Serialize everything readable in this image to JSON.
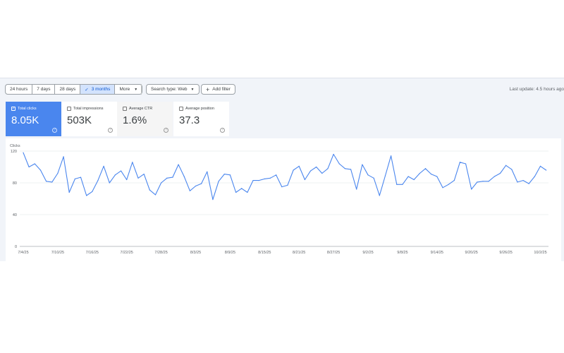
{
  "toolbar": {
    "date_ranges": [
      "24 hours",
      "7 days",
      "28 days",
      "3 months",
      "More"
    ],
    "selected_range": "3 months",
    "search_type": "Search type: Web",
    "add_filter": "Add filter",
    "last_update": "Last update: 4.5 hours ago"
  },
  "metrics": [
    {
      "label": "Total clicks",
      "value": "8.05K",
      "checked": true,
      "color": "#4a86ee"
    },
    {
      "label": "Total impressions",
      "value": "503K",
      "checked": false
    },
    {
      "label": "Average CTR",
      "value": "1.6%",
      "checked": false
    },
    {
      "label": "Average position",
      "value": "37.3",
      "checked": false
    }
  ],
  "chart_data": {
    "type": "line",
    "ylabel": "Clicks",
    "ylim": [
      0,
      120
    ],
    "yticks": [
      0,
      40,
      80,
      120
    ],
    "grid": true,
    "line_color": "#4a86ee",
    "xticks": [
      "7/4/25",
      "7/10/25",
      "7/16/25",
      "7/22/25",
      "7/28/25",
      "8/3/25",
      "8/9/25",
      "8/15/25",
      "8/21/25",
      "8/27/25",
      "9/2/25",
      "9/8/25",
      "9/14/25",
      "9/20/25",
      "9/26/25",
      "10/2/25"
    ],
    "x_start": "7/4/25",
    "x_end": "10/3/25",
    "series": [
      {
        "values": [
          118,
          100,
          104,
          96,
          82,
          81,
          92,
          113,
          68,
          85,
          87,
          64,
          69,
          83,
          101,
          80,
          90,
          95,
          84,
          106,
          86,
          91,
          71,
          65,
          80,
          86,
          87,
          103,
          88,
          70,
          76,
          79,
          94,
          59,
          82,
          91,
          90,
          68,
          73,
          68,
          83,
          83,
          85,
          86,
          90,
          75,
          77,
          96,
          101,
          84,
          95,
          100,
          92,
          98,
          116,
          104,
          98,
          97,
          72,
          103,
          90,
          86,
          64,
          89,
          114,
          78,
          78,
          88,
          84,
          92,
          98,
          91,
          88,
          74,
          78,
          83,
          106,
          104,
          72,
          81,
          82,
          82,
          88,
          92,
          102,
          97,
          81,
          83,
          79,
          88,
          101,
          96
        ]
      }
    ]
  }
}
